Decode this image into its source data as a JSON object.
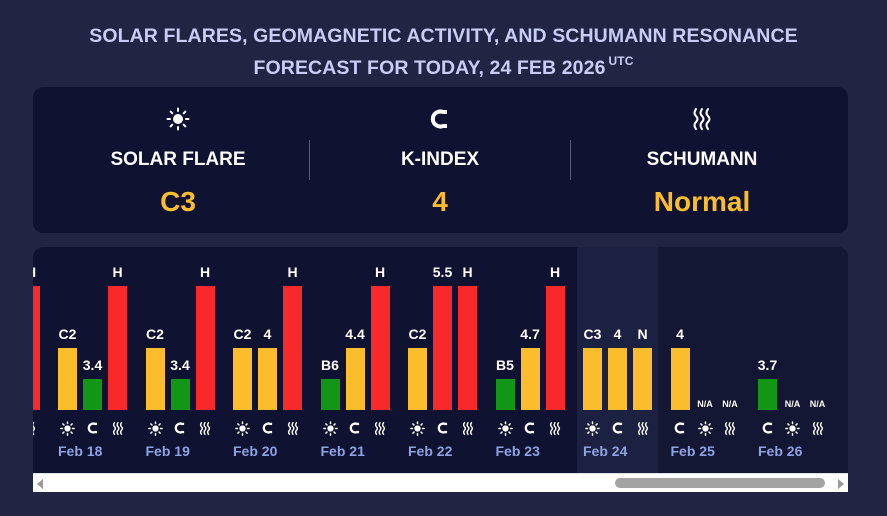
{
  "header": {
    "title_line1": "SOLAR FLARES, GEOMAGNETIC ACTIVITY, AND SCHUMANN RESONANCE",
    "title_line2": "FORECAST FOR TODAY, 24 FEB 2026",
    "timezone": "UTC"
  },
  "summary": {
    "solar_flare": {
      "label": "SOLAR FLARE",
      "value": "C3",
      "icon": "sun-icon"
    },
    "k_index": {
      "label": "K-INDEX",
      "value": "4",
      "icon": "magnet-icon"
    },
    "schumann": {
      "label": "SCHUMANN",
      "value": "Normal",
      "icon": "waves-icon"
    }
  },
  "colors": {
    "background": "#212543",
    "panel": "#0f1230",
    "accent_value": "#fbbd2c",
    "bar_yellow": "#fbbd2c",
    "bar_green": "#119616",
    "bar_red": "#f8292a",
    "date_text": "#8fa3e3"
  },
  "forecast": {
    "partial_day": {
      "label": "H",
      "level": 1.0
    },
    "days": [
      {
        "date": "Feb 18",
        "bars": [
          {
            "metric": "solar",
            "label": "C2",
            "level": 0.5,
            "color": "yellow"
          },
          {
            "metric": "kindex",
            "label": "3.4",
            "level": 0.25,
            "color": "green"
          },
          {
            "metric": "schumann",
            "label": "H",
            "level": 1.0,
            "color": "red"
          }
        ]
      },
      {
        "date": "Feb 19",
        "bars": [
          {
            "metric": "solar",
            "label": "C2",
            "level": 0.5,
            "color": "yellow"
          },
          {
            "metric": "kindex",
            "label": "3.4",
            "level": 0.25,
            "color": "green"
          },
          {
            "metric": "schumann",
            "label": "H",
            "level": 1.0,
            "color": "red"
          }
        ]
      },
      {
        "date": "Feb 20",
        "bars": [
          {
            "metric": "solar",
            "label": "C2",
            "level": 0.5,
            "color": "yellow"
          },
          {
            "metric": "kindex",
            "label": "4",
            "level": 0.5,
            "color": "yellow"
          },
          {
            "metric": "schumann",
            "label": "H",
            "level": 1.0,
            "color": "red"
          }
        ]
      },
      {
        "date": "Feb 21",
        "bars": [
          {
            "metric": "solar",
            "label": "B6",
            "level": 0.25,
            "color": "green"
          },
          {
            "metric": "kindex",
            "label": "4.4",
            "level": 0.5,
            "color": "yellow"
          },
          {
            "metric": "schumann",
            "label": "H",
            "level": 1.0,
            "color": "red"
          }
        ]
      },
      {
        "date": "Feb 22",
        "bars": [
          {
            "metric": "solar",
            "label": "C2",
            "level": 0.5,
            "color": "yellow"
          },
          {
            "metric": "kindex",
            "label": "5.5",
            "level": 1.0,
            "color": "red"
          },
          {
            "metric": "schumann",
            "label": "H",
            "level": 1.0,
            "color": "red"
          }
        ]
      },
      {
        "date": "Feb 23",
        "bars": [
          {
            "metric": "solar",
            "label": "B5",
            "level": 0.25,
            "color": "green"
          },
          {
            "metric": "kindex",
            "label": "4.7",
            "level": 0.5,
            "color": "yellow"
          },
          {
            "metric": "schumann",
            "label": "H",
            "level": 1.0,
            "color": "red"
          }
        ]
      },
      {
        "date": "Feb 24",
        "bars": [
          {
            "metric": "solar",
            "label": "C3",
            "level": 0.5,
            "color": "yellow"
          },
          {
            "metric": "kindex",
            "label": "4",
            "level": 0.5,
            "color": "yellow"
          },
          {
            "metric": "schumann",
            "label": "N",
            "level": 0.5,
            "color": "yellow"
          }
        ]
      },
      {
        "date": "Feb 25",
        "bars": [
          {
            "metric": "kindex",
            "label": "4",
            "level": 0.5,
            "color": "yellow"
          },
          {
            "metric": "solar",
            "label": "N/A",
            "level": 0,
            "color": "none"
          },
          {
            "metric": "schumann",
            "label": "N/A",
            "level": 0,
            "color": "none"
          }
        ]
      },
      {
        "date": "Feb 26",
        "bars": [
          {
            "metric": "kindex",
            "label": "3.7",
            "level": 0.25,
            "color": "green"
          },
          {
            "metric": "solar",
            "label": "N/A",
            "level": 0,
            "color": "none"
          },
          {
            "metric": "schumann",
            "label": "N/A",
            "level": 0,
            "color": "none"
          }
        ]
      }
    ]
  }
}
